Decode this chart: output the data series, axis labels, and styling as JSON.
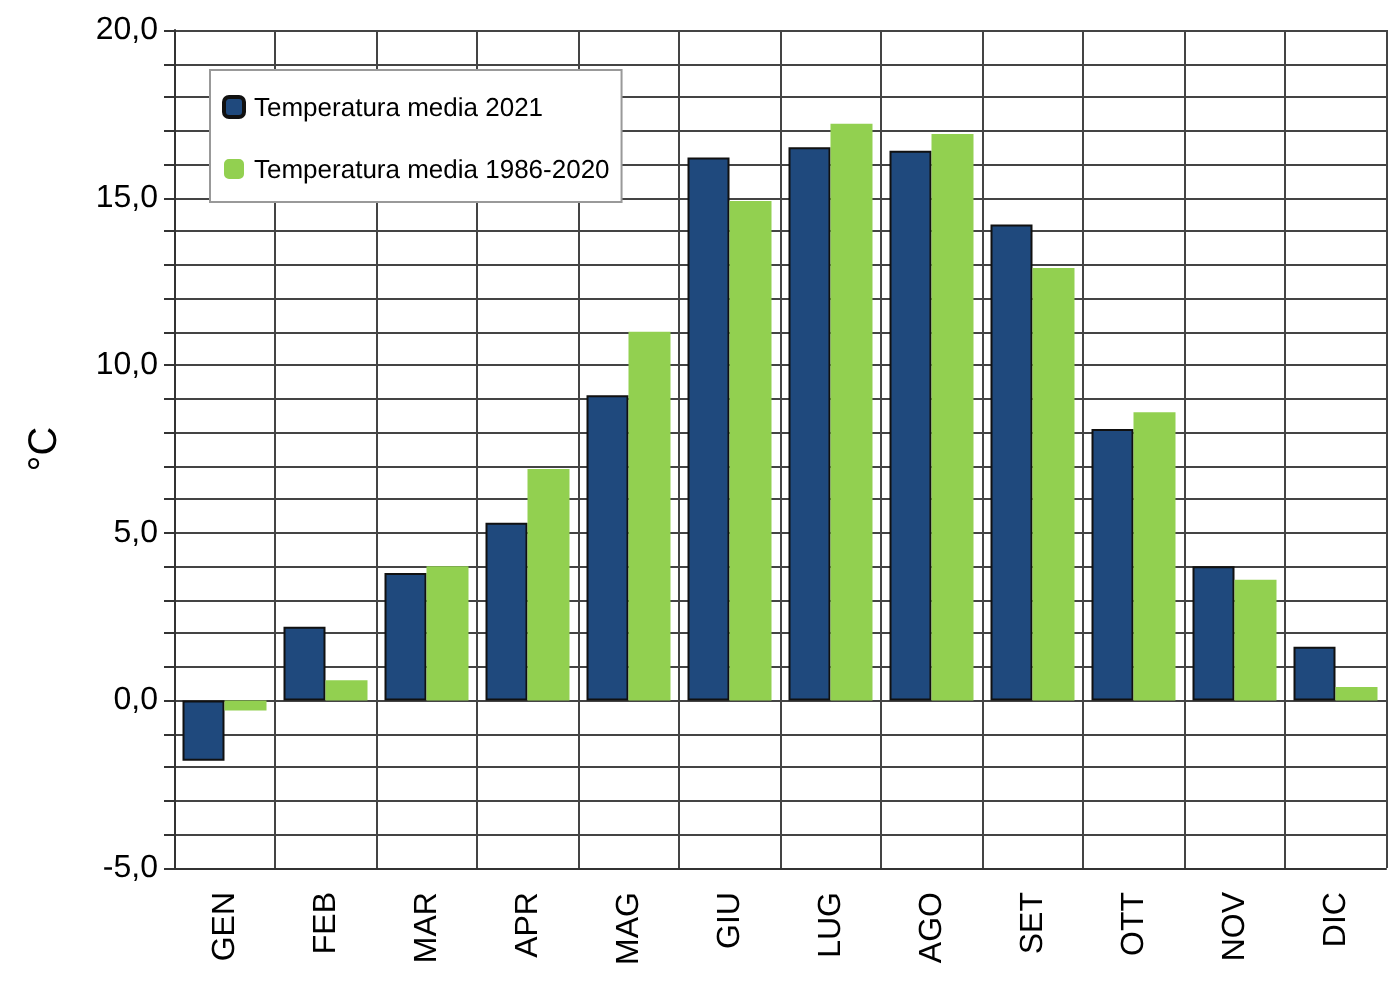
{
  "chart_data": {
    "type": "bar",
    "ylabel": "°C",
    "categories": [
      "GEN",
      "FEB",
      "MAR",
      "APR",
      "MAG",
      "GIU",
      "LUG",
      "AGO",
      "SET",
      "OTT",
      "NOV",
      "DIC"
    ],
    "series": [
      {
        "name": "Temperatura media 2021",
        "color": "#1f497d",
        "values": [
          -1.8,
          2.2,
          3.8,
          5.3,
          9.1,
          16.2,
          16.5,
          16.4,
          14.2,
          8.1,
          4.0,
          1.6
        ]
      },
      {
        "name": "Temperatura media 1986-2020",
        "color": "#92d050",
        "values": [
          -0.3,
          0.6,
          4.0,
          6.9,
          11.0,
          14.9,
          17.2,
          16.9,
          12.9,
          8.6,
          3.6,
          0.4
        ]
      }
    ],
    "ylim": [
      -5,
      20
    ],
    "yticks": [
      {
        "value": -5,
        "label": "-5,0"
      },
      {
        "value": -4,
        "label": null
      },
      {
        "value": -3,
        "label": null
      },
      {
        "value": -2,
        "label": null
      },
      {
        "value": -1,
        "label": null
      },
      {
        "value": 0,
        "label": "0,0"
      },
      {
        "value": 1,
        "label": null
      },
      {
        "value": 2,
        "label": null
      },
      {
        "value": 3,
        "label": null
      },
      {
        "value": 4,
        "label": null
      },
      {
        "value": 5,
        "label": "5,0"
      },
      {
        "value": 6,
        "label": null
      },
      {
        "value": 7,
        "label": null
      },
      {
        "value": 8,
        "label": null
      },
      {
        "value": 9,
        "label": null
      },
      {
        "value": 10,
        "label": "10,0"
      },
      {
        "value": 11,
        "label": null
      },
      {
        "value": 12,
        "label": null
      },
      {
        "value": 13,
        "label": null
      },
      {
        "value": 14,
        "label": null
      },
      {
        "value": 15,
        "label": "15,0"
      },
      {
        "value": 16,
        "label": null
      },
      {
        "value": 17,
        "label": null
      },
      {
        "value": 18,
        "label": null
      },
      {
        "value": 19,
        "label": null
      },
      {
        "value": 20,
        "label": "20,0"
      }
    ],
    "grid": true,
    "legend": "top left"
  }
}
